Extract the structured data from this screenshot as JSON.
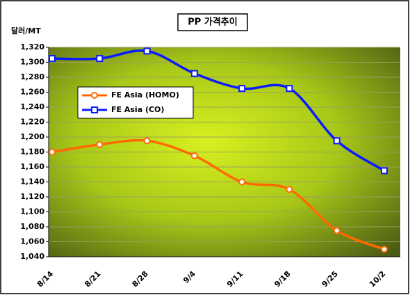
{
  "chart_data": {
    "type": "line",
    "title": "PP 가격추이",
    "y_label": "달러/MT",
    "categories": [
      "8/14",
      "8/21",
      "8/28",
      "9/4",
      "9/11",
      "9/18",
      "9/25",
      "10/2"
    ],
    "series": [
      {
        "name": "FE Asia (HOMO)",
        "color": "#ff6a00",
        "marker": "circle",
        "values": [
          1180,
          1190,
          1195,
          1175,
          1140,
          1130,
          1075,
          1050
        ]
      },
      {
        "name": "FE Asia (CO)",
        "color": "#0a1bff",
        "marker": "square",
        "values": [
          1305,
          1305,
          1315,
          1285,
          1265,
          1265,
          1195,
          1155
        ]
      }
    ],
    "ylim": [
      1040,
      1320
    ],
    "yticks": [
      {
        "value": 1040,
        "label": "1,040"
      },
      {
        "value": 1060,
        "label": "1,060"
      },
      {
        "value": 1080,
        "label": "1,080"
      },
      {
        "value": 1100,
        "label": "1,100"
      },
      {
        "value": 1120,
        "label": "1,120"
      },
      {
        "value": 1140,
        "label": "1,140"
      },
      {
        "value": 1160,
        "label": "1,160"
      },
      {
        "value": 1180,
        "label": "1,180"
      },
      {
        "value": 1200,
        "label": "1,200"
      },
      {
        "value": 1220,
        "label": "1,220"
      },
      {
        "value": 1240,
        "label": "1,240"
      },
      {
        "value": 1260,
        "label": "1,260"
      },
      {
        "value": 1280,
        "label": "1,280"
      },
      {
        "value": 1300,
        "label": "1,300"
      },
      {
        "value": 1320,
        "label": "1,320"
      }
    ],
    "grid": true
  }
}
